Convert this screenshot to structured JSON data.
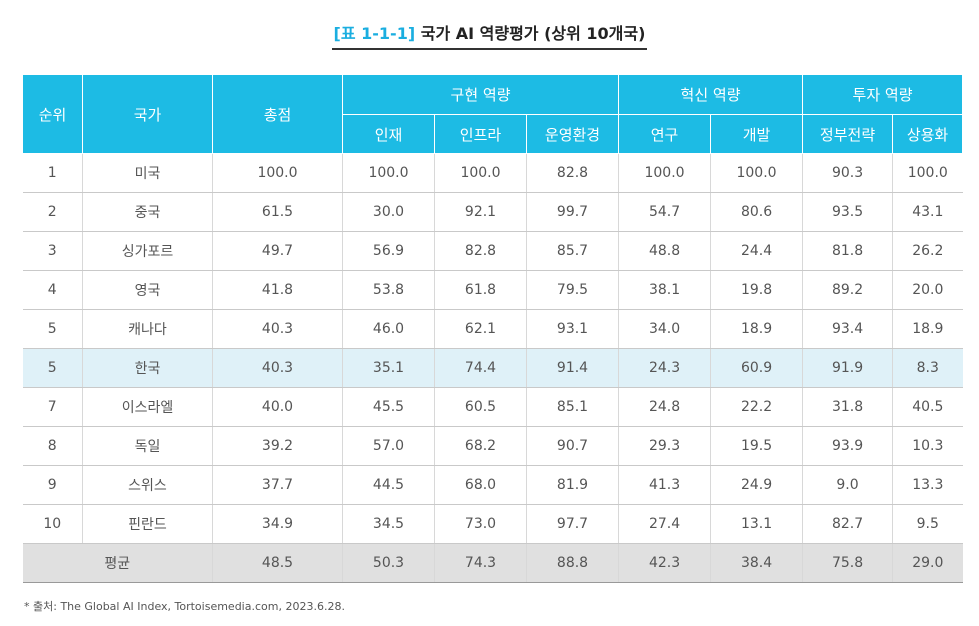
{
  "title": {
    "tag": "[표 1-1-1]",
    "text": " 국가 AI 역량평가 (상위 10개국)"
  },
  "headers": {
    "rank": "순위",
    "country": "국가",
    "total": "총점",
    "groups": [
      "구현 역량",
      "혁신 역량",
      "투자 역량"
    ],
    "sub": [
      "인재",
      "인프라",
      "운영환경",
      "연구",
      "개발",
      "정부전략",
      "상용화"
    ]
  },
  "rows": [
    [
      "1",
      "미국",
      "100.0",
      "100.0",
      "100.0",
      "82.8",
      "100.0",
      "100.0",
      "90.3",
      "100.0"
    ],
    [
      "2",
      "중국",
      "61.5",
      "30.0",
      "92.1",
      "99.7",
      "54.7",
      "80.6",
      "93.5",
      "43.1"
    ],
    [
      "3",
      "싱가포르",
      "49.7",
      "56.9",
      "82.8",
      "85.7",
      "48.8",
      "24.4",
      "81.8",
      "26.2"
    ],
    [
      "4",
      "영국",
      "41.8",
      "53.8",
      "61.8",
      "79.5",
      "38.1",
      "19.8",
      "89.2",
      "20.0"
    ],
    [
      "5",
      "캐나다",
      "40.3",
      "46.0",
      "62.1",
      "93.1",
      "34.0",
      "18.9",
      "93.4",
      "18.9"
    ],
    [
      "5",
      "한국",
      "40.3",
      "35.1",
      "74.4",
      "91.4",
      "24.3",
      "60.9",
      "91.9",
      "8.3"
    ],
    [
      "7",
      "이스라엘",
      "40.0",
      "45.5",
      "60.5",
      "85.1",
      "24.8",
      "22.2",
      "31.8",
      "40.5"
    ],
    [
      "8",
      "독일",
      "39.2",
      "57.0",
      "68.2",
      "90.7",
      "29.3",
      "19.5",
      "93.9",
      "10.3"
    ],
    [
      "9",
      "스위스",
      "37.7",
      "44.5",
      "68.0",
      "81.9",
      "41.3",
      "24.9",
      "9.0",
      "13.3"
    ],
    [
      "10",
      "핀란드",
      "34.9",
      "34.5",
      "73.0",
      "97.7",
      "27.4",
      "13.1",
      "82.7",
      "9.5"
    ]
  ],
  "average": {
    "label": "평균",
    "values": [
      "48.5",
      "50.3",
      "74.3",
      "88.8",
      "42.3",
      "38.4",
      "75.8",
      "29.0"
    ]
  },
  "source": "* 출처: The Global AI Index, Tortoisemedia.com, 2023.6.28."
}
